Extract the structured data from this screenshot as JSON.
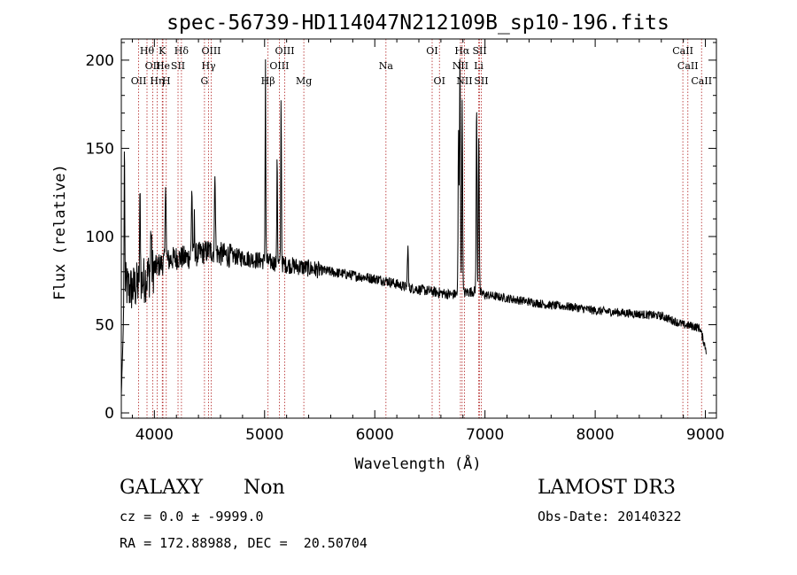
{
  "chart_data": {
    "type": "line",
    "title": "spec-56739-HD114047N212109B_sp10-196.fits",
    "xlabel": "Wavelength (Å)",
    "ylabel": "Flux (relative)",
    "xlim": [
      3700,
      9100
    ],
    "ylim": [
      -3,
      212
    ],
    "xticks": [
      4000,
      5000,
      6000,
      7000,
      8000,
      9000
    ],
    "yticks": [
      0,
      50,
      100,
      150,
      200
    ],
    "continuum": {
      "x": [
        3700,
        3730,
        3800,
        3900,
        4000,
        4100,
        4200,
        4300,
        4400,
        4500,
        4600,
        4700,
        4800,
        4900,
        5000,
        5100,
        5200,
        5300,
        5400,
        5500,
        5600,
        5700,
        5800,
        5900,
        6000,
        6100,
        6200,
        6300,
        6400,
        6500,
        6600,
        6700,
        6800,
        6900,
        7000,
        7200,
        7400,
        7600,
        7800,
        8000,
        8200,
        8400,
        8600,
        8800,
        8900,
        8950,
        9010
      ],
      "y": [
        10,
        72,
        70,
        75,
        82,
        86,
        88,
        88,
        90,
        92,
        90,
        89,
        88,
        87,
        86,
        85,
        84,
        83,
        82,
        81,
        80,
        79,
        78,
        77,
        76,
        75,
        73,
        71,
        70,
        69,
        68,
        67,
        68,
        69,
        67,
        65,
        63,
        61,
        60,
        58,
        57,
        56,
        55,
        50,
        49,
        48,
        35
      ],
      "noise": [
        {
          "until": 4000,
          "amp": 14
        },
        {
          "until": 4700,
          "amp": 7
        },
        {
          "until": 5500,
          "amp": 5
        },
        {
          "until": 7000,
          "amp": 3
        },
        {
          "until": 9100,
          "amp": 2.5
        }
      ]
    },
    "emission_lines": [
      {
        "x": 3728,
        "peak": 155,
        "width": 3
      },
      {
        "x": 3870,
        "peak": 120,
        "width": 4
      },
      {
        "x": 3970,
        "peak": 105,
        "width": 4
      },
      {
        "x": 4102,
        "peak": 135,
        "width": 4
      },
      {
        "x": 4340,
        "peak": 128,
        "width": 4
      },
      {
        "x": 4363,
        "peak": 110,
        "width": 3
      },
      {
        "x": 4550,
        "peak": 140,
        "width": 4
      },
      {
        "x": 5008,
        "peak": 200,
        "width": 3
      },
      {
        "x": 5114,
        "peak": 150,
        "width": 3
      },
      {
        "x": 5150,
        "peak": 180,
        "width": 3
      },
      {
        "x": 6300,
        "peak": 95,
        "width": 4
      },
      {
        "x": 6760,
        "peak": 160,
        "width": 4
      },
      {
        "x": 6773,
        "peak": 205,
        "width": 4
      },
      {
        "x": 6793,
        "peak": 175,
        "width": 4
      },
      {
        "x": 6924,
        "peak": 175,
        "width": 4
      },
      {
        "x": 6944,
        "peak": 160,
        "width": 4
      }
    ],
    "reference_lines": [
      {
        "label": "OII",
        "x": 3727,
        "row": 3
      },
      {
        "label": "Hθ",
        "x": 3800,
        "row": 1
      },
      {
        "label": "OII",
        "x": 3850,
        "row": 2
      },
      {
        "label": "Hη",
        "x": 3889,
        "row": 3
      },
      {
        "label": "He",
        "x": 3940,
        "row": 2
      },
      {
        "label": "K",
        "x": 3934,
        "row": 1
      },
      {
        "label": "H",
        "x": 3969,
        "row": 3
      },
      {
        "label": "Hδ",
        "x": 4102,
        "row": 1
      },
      {
        "label": "SII",
        "x": 4072,
        "row": 2
      },
      {
        "label": "OIII",
        "x": 4363,
        "row": 1
      },
      {
        "label": "Hγ",
        "x": 4340,
        "row": 2
      },
      {
        "label": "G",
        "x": 4304,
        "row": 3
      },
      {
        "label": "OIII",
        "x": 5008,
        "row": 1
      },
      {
        "label": "OIII",
        "x": 4960,
        "row": 2
      },
      {
        "label": "Hβ",
        "x": 4861,
        "row": 3
      },
      {
        "label": "Mg",
        "x": 5175,
        "row": 3
      },
      {
        "label": "Na",
        "x": 5895,
        "row": 2
      },
      {
        "label": "OI",
        "x": 6300,
        "row": 1
      },
      {
        "label": "OI",
        "x": 6364,
        "row": 3
      },
      {
        "label": "Hα",
        "x": 6563,
        "row": 1
      },
      {
        "label": "SII",
        "x": 6716,
        "row": 1
      },
      {
        "label": "NII",
        "x": 6548,
        "row": 2
      },
      {
        "label": "Li",
        "x": 6708,
        "row": 2
      },
      {
        "label": "NII",
        "x": 6583,
        "row": 3
      },
      {
        "label": "SII",
        "x": 6731,
        "row": 3
      },
      {
        "label": "CaII",
        "x": 8498,
        "row": 1
      },
      {
        "label": "CaII",
        "x": 8542,
        "row": 2
      },
      {
        "label": "CaII",
        "x": 8662,
        "row": 3
      }
    ],
    "redshift_factor": 1.035
  },
  "info": {
    "object_class": "GALAXY",
    "subclass": "Non",
    "survey": "LAMOST DR3",
    "cz": "cz = 0.0 ± -9999.0",
    "obs_date": "Obs-Date: 20140322",
    "coords": "RA = 172.88988, DEC =  20.50704"
  }
}
